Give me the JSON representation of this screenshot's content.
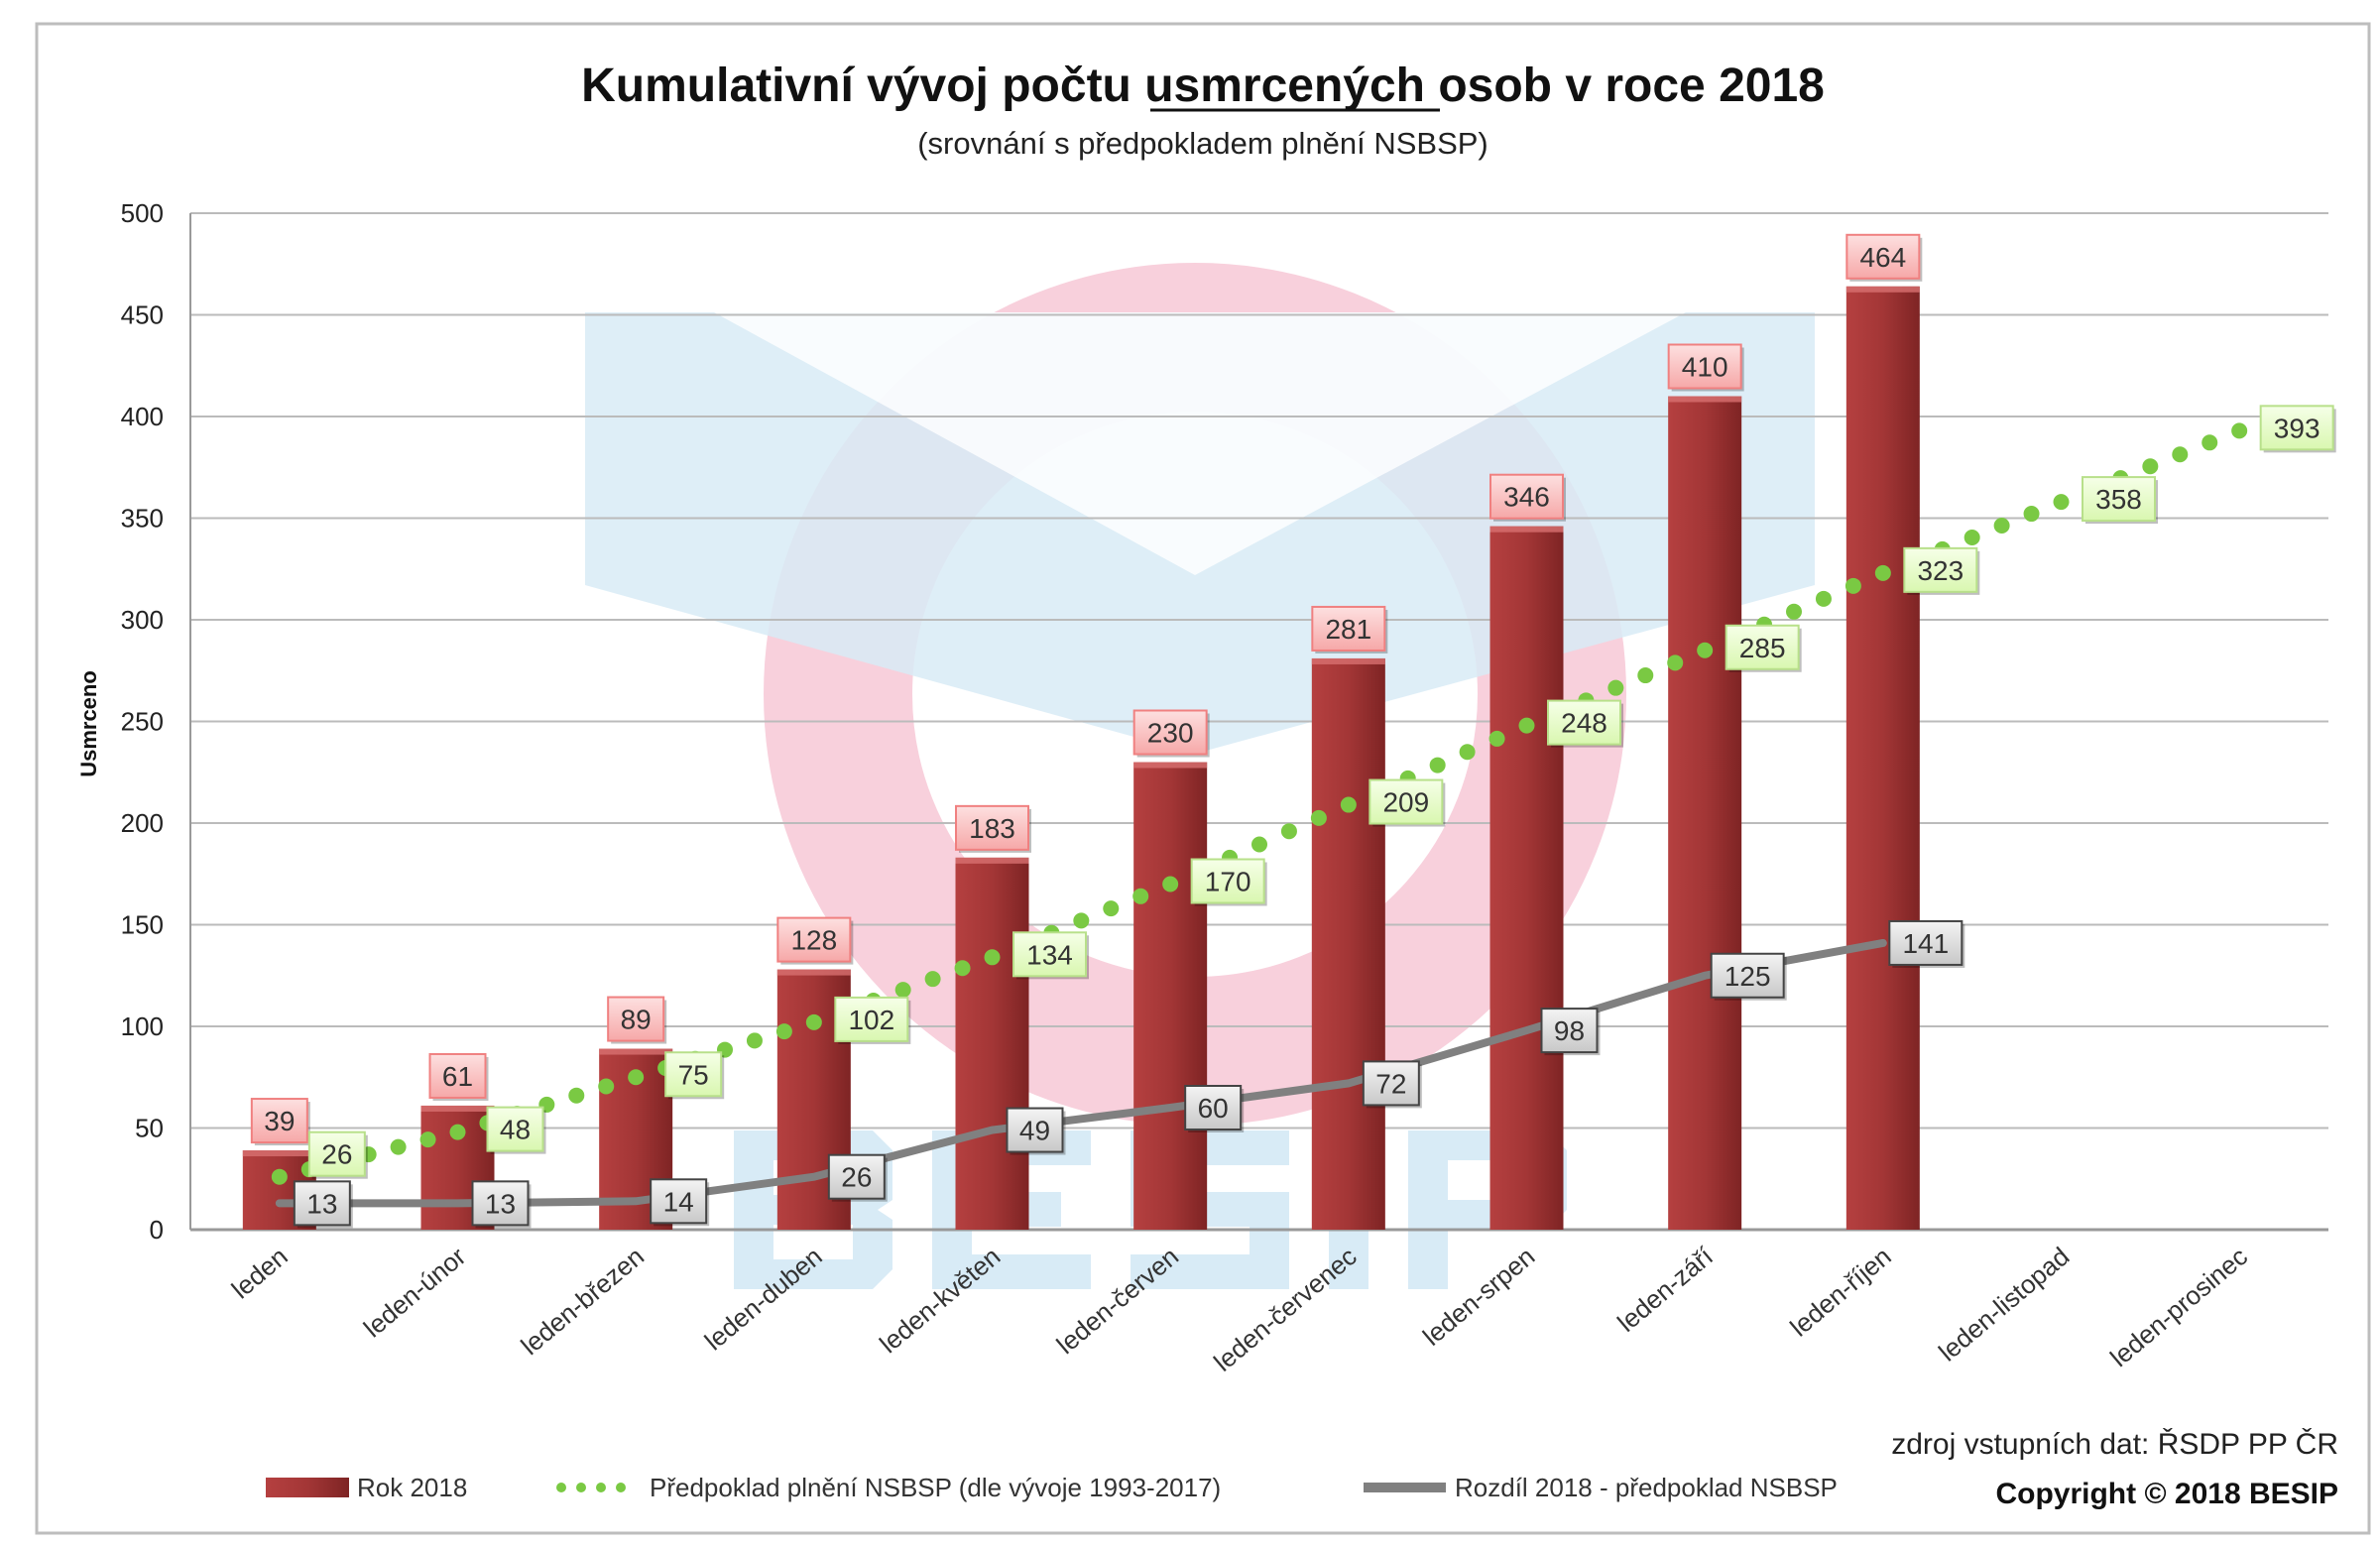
{
  "chart_data": {
    "type": "bar",
    "title": "Kumulativní vývoj počtu usmrcených osob v roce 2018",
    "title_underlined_word": "usmrcených",
    "subtitle": "(srovnání s předpokladem plnění NSBSP)",
    "ylabel": "Usmrceno",
    "xlabel": "",
    "ylim": [
      0,
      500
    ],
    "yticks": [
      0,
      50,
      100,
      150,
      200,
      250,
      300,
      350,
      400,
      450,
      500
    ],
    "grid": true,
    "legend_position": "bottom",
    "categories": [
      "leden",
      "leden-únor",
      "leden-březen",
      "leden-duben",
      "leden-květen",
      "leden-červen",
      "leden-červenec",
      "leden-srpen",
      "leden-září",
      "leden-říjen",
      "leden-listopad",
      "leden-prosinec"
    ],
    "series": [
      {
        "name": "Rok 2018",
        "kind": "bar",
        "color": "#9b2f2f",
        "values": [
          39,
          61,
          89,
          128,
          183,
          230,
          281,
          346,
          410,
          464,
          null,
          null
        ]
      },
      {
        "name": "Předpoklad plnění NSBSP (dle vývoje 1993-2017)",
        "kind": "dotted-line",
        "color": "#7ac943",
        "values": [
          26,
          48,
          75,
          102,
          134,
          170,
          209,
          248,
          285,
          323,
          358,
          393
        ]
      },
      {
        "name": "Rozdíl 2018 - předpoklad NSBSP",
        "kind": "line",
        "color": "#808080",
        "values": [
          13,
          13,
          14,
          26,
          49,
          60,
          72,
          98,
          125,
          141,
          null,
          null
        ]
      }
    ],
    "source": "zdroj vstupních dat: ŘSDP PP ČR",
    "copyright": "Copyright © 2018 BESIP",
    "watermark": "BESIP"
  }
}
